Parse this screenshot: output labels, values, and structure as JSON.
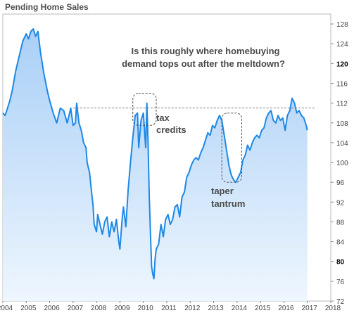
{
  "chart_data": {
    "type": "area",
    "title": "Pending Home Sales",
    "xlabel": "",
    "ylabel": "",
    "xlim": [
      2004,
      2018
    ],
    "ylim": [
      72,
      130
    ],
    "y_ticks": [
      72,
      76,
      80,
      84,
      88,
      92,
      96,
      100,
      104,
      108,
      112,
      116,
      120,
      124,
      128
    ],
    "y_ticks_bold": [
      80,
      120
    ],
    "x_ticks": [
      2004,
      2005,
      2006,
      2007,
      2008,
      2009,
      2010,
      2011,
      2012,
      2013,
      2014,
      2015,
      2016,
      2017,
      2018
    ],
    "grid": false,
    "reference_line": 111,
    "colors": {
      "line": "#1e88e5",
      "fill_top": "#a9cff7",
      "fill_bottom": "#eef6fe",
      "frame": "#b8b8b8"
    },
    "annotations": {
      "main_line1": "Is this roughly where homebuying",
      "main_line2": "demand tops out after the meltdown?",
      "tax_1": "tax",
      "tax_2": "credits",
      "taper_1": "taper",
      "taper_2": "tantrum"
    },
    "highlight_boxes": [
      {
        "name": "tax-credits-box",
        "x": [
          2009.55,
          2010.55
        ],
        "y": [
          107.5,
          114
        ]
      },
      {
        "name": "taper-tantrum-box",
        "x": [
          2013.35,
          2014.2
        ],
        "y": [
          96,
          110
        ]
      }
    ],
    "series": [
      {
        "x": [
          2004.0,
          2004.1,
          2004.2,
          2004.3,
          2004.4,
          2004.55,
          2004.7,
          2004.85,
          2005.0,
          2005.1,
          2005.2,
          2005.3,
          2005.4,
          2005.5,
          2005.6,
          2005.75,
          2005.9,
          2006.0,
          2006.15,
          2006.3,
          2006.45,
          2006.6,
          2006.75,
          2006.9,
          2007.0,
          2007.1,
          2007.15,
          2007.25,
          2007.35,
          2007.45,
          2007.55,
          2007.6,
          2007.7,
          2007.8,
          2007.85,
          2007.9,
          2008.0,
          2008.05,
          2008.15,
          2008.25,
          2008.35,
          2008.45,
          2008.55,
          2008.65,
          2008.75,
          2008.85,
          2008.95,
          2009.0,
          2009.1,
          2009.15,
          2009.25,
          2009.35,
          2009.45,
          2009.55,
          2009.65,
          2009.75,
          2009.8,
          2009.9,
          2010.0,
          2010.1,
          2010.15,
          2010.2,
          2010.25,
          2010.3,
          2010.35,
          2010.4,
          2010.45,
          2010.5,
          2010.55,
          2010.65,
          2010.75,
          2010.85,
          2010.95,
          2011.05,
          2011.15,
          2011.25,
          2011.35,
          2011.45,
          2011.55,
          2011.65,
          2011.75,
          2011.85,
          2011.95,
          2012.05,
          2012.15,
          2012.25,
          2012.35,
          2012.45,
          2012.55,
          2012.65,
          2012.75,
          2012.85,
          2012.95,
          2013.05,
          2013.15,
          2013.25,
          2013.35,
          2013.45,
          2013.55,
          2013.65,
          2013.75,
          2013.85,
          2013.95,
          2014.05,
          2014.15,
          2014.25,
          2014.35,
          2014.45,
          2014.55,
          2014.65,
          2014.75,
          2014.85,
          2014.95,
          2015.05,
          2015.15,
          2015.25,
          2015.35,
          2015.45,
          2015.55,
          2015.65,
          2015.75,
          2015.85,
          2015.95,
          2016.05,
          2016.15,
          2016.25,
          2016.35,
          2016.45,
          2016.55,
          2016.65,
          2016.75,
          2016.85,
          2016.95,
          2017.0
        ],
        "y": [
          110.0,
          109.5,
          111.0,
          112.5,
          114.5,
          118.5,
          121.5,
          124.5,
          126.0,
          125.0,
          126.5,
          127.0,
          125.5,
          126.5,
          122.5,
          118.0,
          114.5,
          112.5,
          110.0,
          108.0,
          111.0,
          110.5,
          108.0,
          111.0,
          107.5,
          108.0,
          112.0,
          108.0,
          106.5,
          104.0,
          103.0,
          100.0,
          98.0,
          93.5,
          91.5,
          87.5,
          86.0,
          89.5,
          87.5,
          85.5,
          88.0,
          89.0,
          85.0,
          88.0,
          86.0,
          88.5,
          84.0,
          82.5,
          89.0,
          91.0,
          87.0,
          94.5,
          100.0,
          105.0,
          109.5,
          110.0,
          103.0,
          108.5,
          110.0,
          103.0,
          112.0,
          104.0,
          93.5,
          86.0,
          79.0,
          77.5,
          76.5,
          80.5,
          82.5,
          83.5,
          87.5,
          85.0,
          88.5,
          89.5,
          87.5,
          88.5,
          91.0,
          91.5,
          89.0,
          93.0,
          94.0,
          97.0,
          98.0,
          99.5,
          100.5,
          101.0,
          100.5,
          102.0,
          103.0,
          104.5,
          106.0,
          105.5,
          107.5,
          107.0,
          108.5,
          109.5,
          108.5,
          105.5,
          102.5,
          99.5,
          97.5,
          96.5,
          96.0,
          97.0,
          98.0,
          100.5,
          101.5,
          103.5,
          102.5,
          104.0,
          105.0,
          105.5,
          105.0,
          106.5,
          107.0,
          109.0,
          110.0,
          110.5,
          108.5,
          108.0,
          109.5,
          108.5,
          109.0,
          106.5,
          109.5,
          110.5,
          113.0,
          112.0,
          110.0,
          110.5,
          109.5,
          109.0,
          107.5,
          106.5
        ]
      }
    ]
  }
}
